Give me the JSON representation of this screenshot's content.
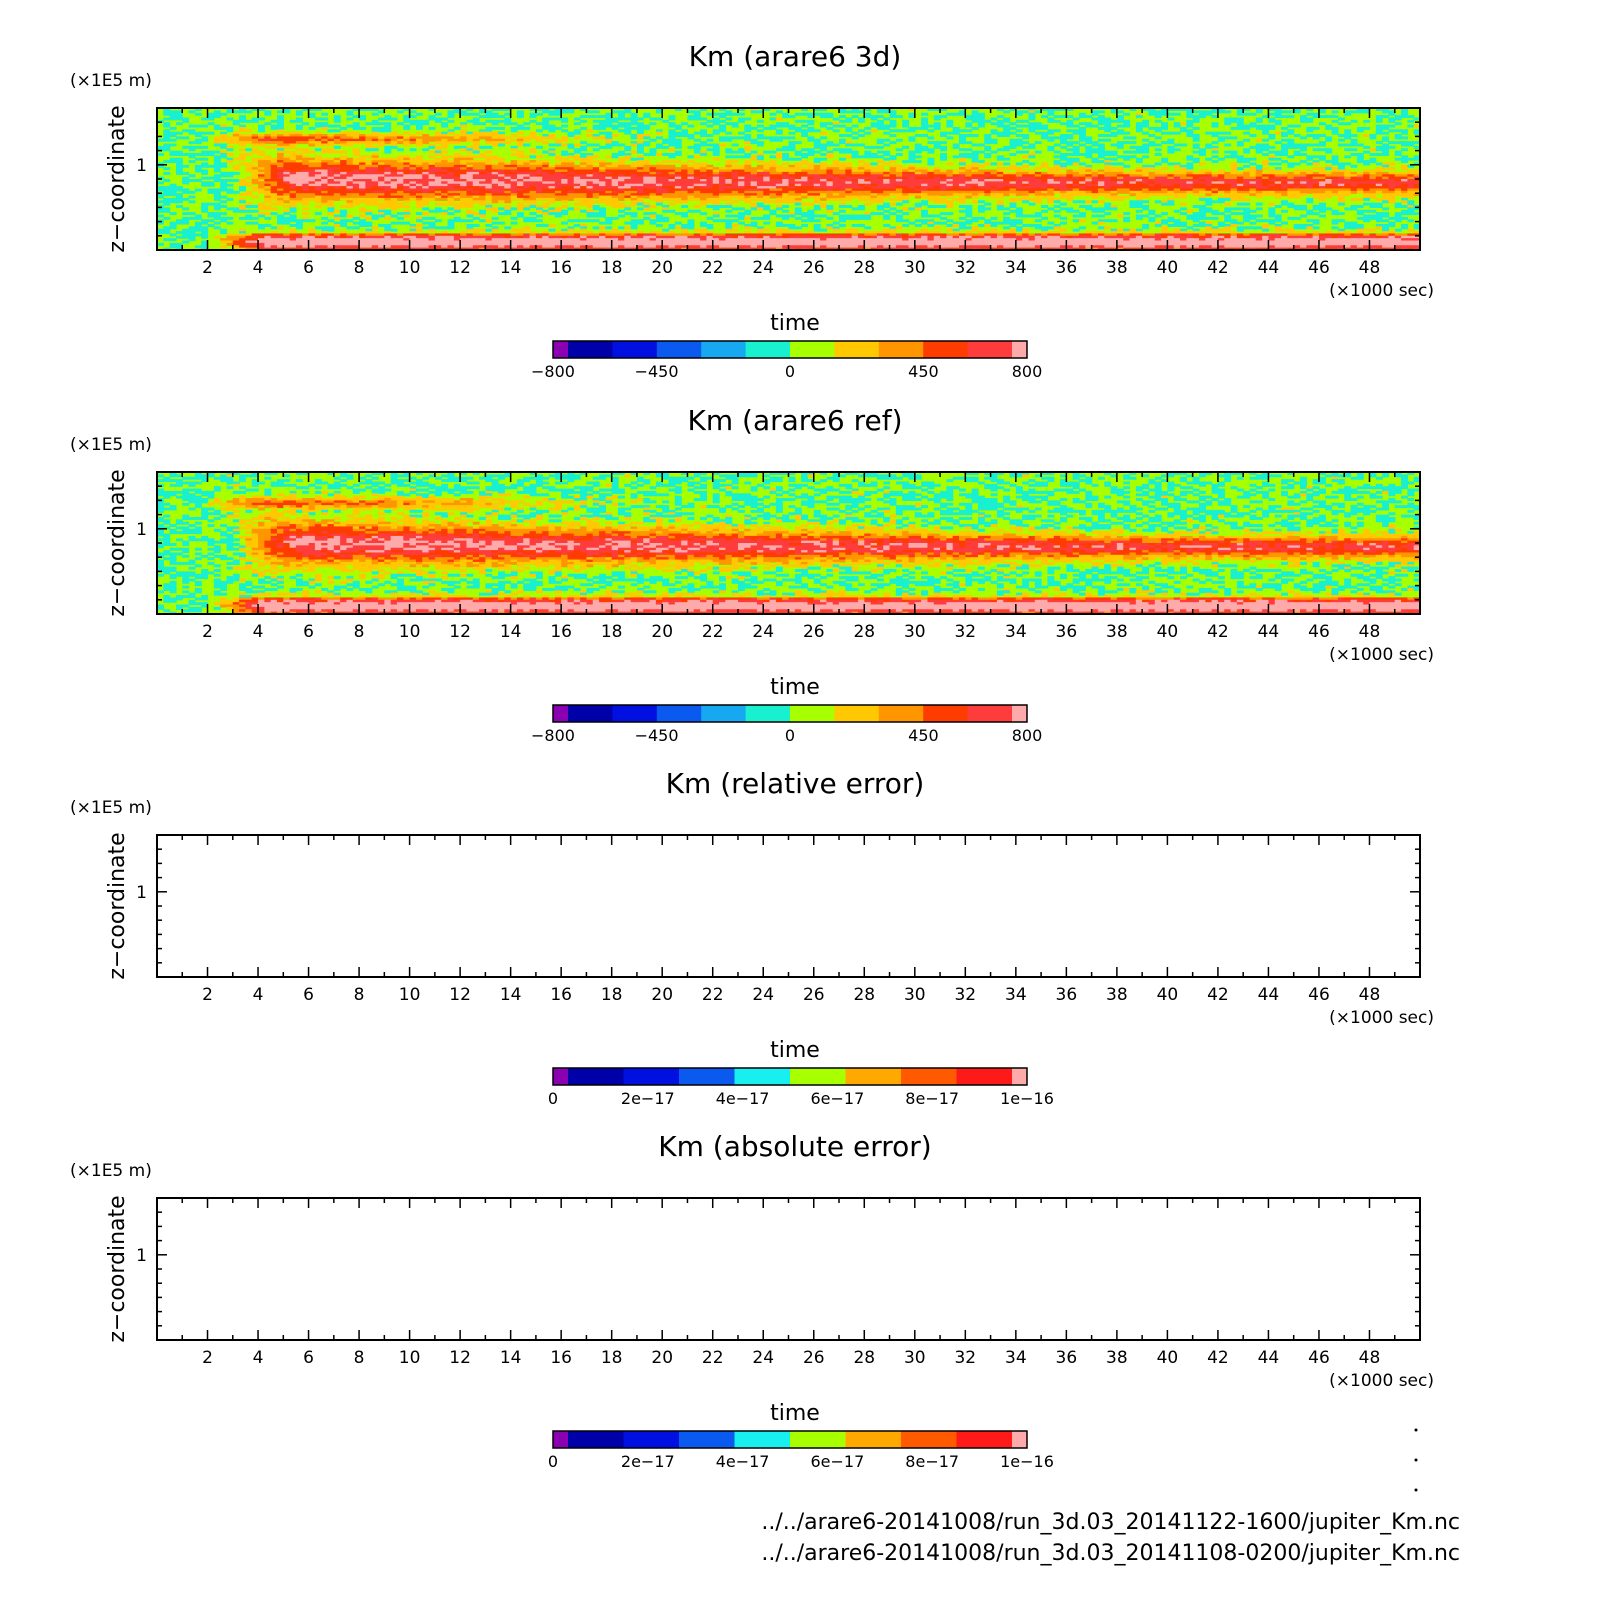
{
  "chart_data": [
    {
      "type": "heatmap",
      "title": "Km (arare6 3d)",
      "xlabel": "time",
      "x_unit": "(×1000 sec)",
      "ylabel": "z−coordinate",
      "y_unit": "(×1E5 m)",
      "x_range": [
        0,
        50
      ],
      "y_range": [
        0.4,
        1.4
      ],
      "x_ticks": [
        "2",
        "4",
        "6",
        "8",
        "10",
        "12",
        "14",
        "16",
        "18",
        "20",
        "22",
        "24",
        "26",
        "28",
        "30",
        "32",
        "34",
        "36",
        "38",
        "40",
        "42",
        "44",
        "46",
        "48"
      ],
      "y_ticks": [
        "1"
      ],
      "colorbar": {
        "range": [
          -800,
          800
        ],
        "colors": [
          "#8B00B0",
          "#0000A8",
          "#0010E0",
          "#0A5AF0",
          "#16A8F0",
          "#18F0D0",
          "#A8FF00",
          "#FFC800",
          "#FF9600",
          "#FF3C00",
          "#FF3C3C",
          "#FFAAAA"
        ],
        "tick_labels": [
          "−800",
          "−450",
          "0",
          "450",
          "800"
        ]
      },
      "field_description": {
        "background": 0,
        "upper_band_peak": 700,
        "lower_band_peak": 800
      }
    },
    {
      "type": "heatmap",
      "title": "Km (arare6 ref)",
      "xlabel": "time",
      "x_unit": "(×1000 sec)",
      "ylabel": "z−coordinate",
      "y_unit": "(×1E5 m)",
      "x_range": [
        0,
        50
      ],
      "y_range": [
        0.4,
        1.4
      ],
      "x_ticks": [
        "2",
        "4",
        "6",
        "8",
        "10",
        "12",
        "14",
        "16",
        "18",
        "20",
        "22",
        "24",
        "26",
        "28",
        "30",
        "32",
        "34",
        "36",
        "38",
        "40",
        "42",
        "44",
        "46",
        "48"
      ],
      "y_ticks": [
        "1"
      ],
      "colorbar": {
        "range": [
          -800,
          800
        ],
        "colors": [
          "#8B00B0",
          "#0000A8",
          "#0010E0",
          "#0A5AF0",
          "#16A8F0",
          "#18F0D0",
          "#A8FF00",
          "#FFC800",
          "#FF9600",
          "#FF3C00",
          "#FF3C3C",
          "#FFAAAA"
        ],
        "tick_labels": [
          "−800",
          "−450",
          "0",
          "450",
          "800"
        ]
      },
      "field_description": {
        "background": 0,
        "upper_band_peak": 700,
        "lower_band_peak": 800
      }
    },
    {
      "type": "heatmap",
      "title": "Km (relative error)",
      "xlabel": "time",
      "x_unit": "(×1000 sec)",
      "ylabel": "z−coordinate",
      "y_unit": "(×1E5 m)",
      "x_range": [
        0,
        50
      ],
      "y_range": [
        0.4,
        1.4
      ],
      "x_ticks": [
        "2",
        "4",
        "6",
        "8",
        "10",
        "12",
        "14",
        "16",
        "18",
        "20",
        "22",
        "24",
        "26",
        "28",
        "30",
        "32",
        "34",
        "36",
        "38",
        "40",
        "42",
        "44",
        "46",
        "48"
      ],
      "y_ticks": [
        "1"
      ],
      "empty": true,
      "colorbar": {
        "range": [
          0,
          1e-16
        ],
        "colors": [
          "#8B00B0",
          "#0000A8",
          "#0010E0",
          "#0A5AF0",
          "#18F0F0",
          "#A8FF00",
          "#FFA800",
          "#FF5A00",
          "#FF1A1A",
          "#FFAAAA"
        ],
        "tick_labels": [
          "0",
          "2e−17",
          "4e−17",
          "6e−17",
          "8e−17",
          "1e−16"
        ]
      }
    },
    {
      "type": "heatmap",
      "title": "Km (absolute error)",
      "xlabel": "time",
      "x_unit": "(×1000 sec)",
      "ylabel": "z−coordinate",
      "y_unit": "(×1E5 m)",
      "x_range": [
        0,
        50
      ],
      "y_range": [
        0.4,
        1.4
      ],
      "x_ticks": [
        "2",
        "4",
        "6",
        "8",
        "10",
        "12",
        "14",
        "16",
        "18",
        "20",
        "22",
        "24",
        "26",
        "28",
        "30",
        "32",
        "34",
        "36",
        "38",
        "40",
        "42",
        "44",
        "46",
        "48"
      ],
      "y_ticks": [
        "1"
      ],
      "empty": true,
      "colorbar": {
        "range": [
          0,
          1e-16
        ],
        "colors": [
          "#8B00B0",
          "#0000A8",
          "#0010E0",
          "#0A5AF0",
          "#18F0F0",
          "#A8FF00",
          "#FFA800",
          "#FF5A00",
          "#FF1A1A",
          "#FFAAAA"
        ],
        "tick_labels": [
          "0",
          "2e−17",
          "4e−17",
          "6e−17",
          "8e−17",
          "1e−16"
        ]
      }
    }
  ],
  "footer": {
    "line1": "../../arare6-20141008/run_3d.03_20141122-1600/jupiter_Km.nc",
    "line2": "../../arare6-20141008/run_3d.03_20141108-0200/jupiter_Km.nc"
  }
}
